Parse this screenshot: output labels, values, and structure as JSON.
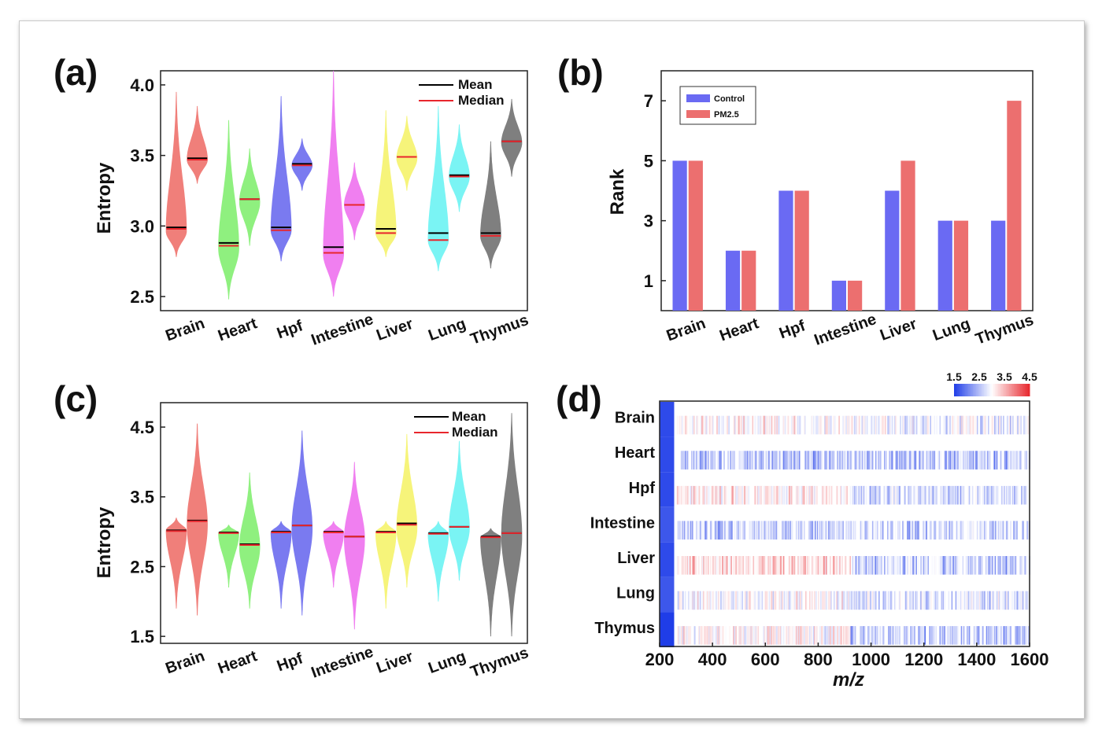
{
  "chart_data": [
    {
      "panel": "(a)",
      "type": "violin",
      "ylabel": "Entropy",
      "ylim": [
        2.4,
        4.1
      ],
      "yticks": [
        "2.5",
        "3.0",
        "3.5",
        "4.0"
      ],
      "yticks_values": [
        2.5,
        3.0,
        3.5,
        4.0
      ],
      "categories": [
        "Brain",
        "Heart",
        "Hpf",
        "Intestine",
        "Liver",
        "Lung",
        "Thymus"
      ],
      "legend": {
        "mean_label": "Mean",
        "median_label": "Median",
        "placement": "top-right"
      },
      "colors": {
        "mean": "#000000",
        "median": "#e8262d"
      },
      "groups": [
        {
          "category": "Brain",
          "color": "#f07f7a",
          "min": 2.78,
          "max": 3.95,
          "peak": 2.96,
          "mean": 2.99,
          "median": 2.98
        },
        {
          "category": "Brain",
          "color": "#f07f7a",
          "min": 3.3,
          "max": 3.85,
          "peak": 3.47,
          "mean": 3.48,
          "median": 3.47
        },
        {
          "category": "Heart",
          "color": "#8ff07f",
          "min": 2.48,
          "max": 3.75,
          "peak": 2.84,
          "mean": 2.88,
          "median": 2.86
        },
        {
          "category": "Heart",
          "color": "#8ff07f",
          "min": 2.86,
          "max": 3.55,
          "peak": 3.17,
          "mean": 3.19,
          "median": 3.19
        },
        {
          "category": "Hpf",
          "color": "#7a7af0",
          "min": 2.75,
          "max": 3.92,
          "peak": 2.97,
          "mean": 2.99,
          "median": 2.97
        },
        {
          "category": "Hpf",
          "color": "#7a7af0",
          "min": 3.25,
          "max": 3.62,
          "peak": 3.43,
          "mean": 3.44,
          "median": 3.43
        },
        {
          "category": "Intestine",
          "color": "#f07ff0",
          "min": 2.5,
          "max": 4.1,
          "peak": 2.8,
          "mean": 2.85,
          "median": 2.81
        },
        {
          "category": "Intestine",
          "color": "#f07ff0",
          "min": 2.9,
          "max": 3.45,
          "peak": 3.15,
          "mean": 3.15,
          "median": 3.15
        },
        {
          "category": "Liver",
          "color": "#f6f47a",
          "min": 2.78,
          "max": 3.82,
          "peak": 2.95,
          "mean": 2.98,
          "median": 2.95
        },
        {
          "category": "Liver",
          "color": "#f6f47a",
          "min": 3.25,
          "max": 3.78,
          "peak": 3.48,
          "mean": 3.49,
          "median": 3.49
        },
        {
          "category": "Lung",
          "color": "#7af4f4",
          "min": 2.68,
          "max": 3.85,
          "peak": 2.9,
          "mean": 2.95,
          "median": 2.9
        },
        {
          "category": "Lung",
          "color": "#7af4f4",
          "min": 3.1,
          "max": 3.72,
          "peak": 3.35,
          "mean": 3.36,
          "median": 3.35
        },
        {
          "category": "Thymus",
          "color": "#7f7f7f",
          "min": 2.7,
          "max": 3.6,
          "peak": 2.93,
          "mean": 2.95,
          "median": 2.93
        },
        {
          "category": "Thymus",
          "color": "#7f7f7f",
          "min": 3.35,
          "max": 3.9,
          "peak": 3.59,
          "mean": 3.6,
          "median": 3.6
        }
      ]
    },
    {
      "panel": "(b)",
      "type": "bar",
      "ylabel": "Rank",
      "ylim": [
        0,
        8
      ],
      "yticks": [
        "1",
        "3",
        "5",
        "7"
      ],
      "yticks_values": [
        1,
        3,
        5,
        7
      ],
      "categories": [
        "Brain",
        "Heart",
        "Hpf",
        "Intestine",
        "Liver",
        "Lung",
        "Thymus"
      ],
      "legend_placement": "top-left",
      "series": [
        {
          "name": "Control",
          "color": "#6a6af3",
          "values": [
            5,
            2,
            4,
            1,
            4,
            3,
            3
          ]
        },
        {
          "name": "PM2.5",
          "color": "#ec6f6f",
          "values": [
            5,
            2,
            4,
            1,
            5,
            3,
            7
          ]
        }
      ]
    },
    {
      "panel": "(c)",
      "type": "violin",
      "ylabel": "Entropy",
      "ylim": [
        1.4,
        4.85
      ],
      "yticks": [
        "1.5",
        "2.5",
        "3.5",
        "4.5"
      ],
      "yticks_values": [
        1.5,
        2.5,
        3.5,
        4.5
      ],
      "categories": [
        "Brain",
        "Heart",
        "Hpf",
        "Intestine",
        "Liver",
        "Lung",
        "Thymus"
      ],
      "legend": {
        "mean_label": "Mean",
        "median_label": "Median",
        "placement": "top-right"
      },
      "colors": {
        "mean": "#000000",
        "median": "#e8262d"
      },
      "groups": [
        {
          "category": "Brain",
          "color": "#f07f7a",
          "min": 1.9,
          "max": 3.2,
          "peak": 3.02,
          "mean": 3.02,
          "median": 3.01
        },
        {
          "category": "Brain",
          "color": "#f07f7a",
          "min": 1.8,
          "max": 4.55,
          "peak": 3.1,
          "mean": 3.16,
          "median": 3.15
        },
        {
          "category": "Heart",
          "color": "#8ff07f",
          "min": 2.2,
          "max": 3.1,
          "peak": 2.98,
          "mean": 2.99,
          "median": 2.98
        },
        {
          "category": "Heart",
          "color": "#8ff07f",
          "min": 1.9,
          "max": 3.85,
          "peak": 2.78,
          "mean": 2.82,
          "median": 2.81
        },
        {
          "category": "Hpf",
          "color": "#7a7af0",
          "min": 1.9,
          "max": 3.15,
          "peak": 2.99,
          "mean": 3.0,
          "median": 2.99
        },
        {
          "category": "Hpf",
          "color": "#7a7af0",
          "min": 1.8,
          "max": 4.45,
          "peak": 3.05,
          "mean": 3.09,
          "median": 3.09
        },
        {
          "category": "Intestine",
          "color": "#f07ff0",
          "min": 2.2,
          "max": 3.15,
          "peak": 2.99,
          "mean": 3.0,
          "median": 2.99
        },
        {
          "category": "Intestine",
          "color": "#f07ff0",
          "min": 1.6,
          "max": 4.0,
          "peak": 2.9,
          "mean": 2.93,
          "median": 2.93
        },
        {
          "category": "Liver",
          "color": "#f6f47a",
          "min": 1.9,
          "max": 3.15,
          "peak": 2.99,
          "mean": 3.0,
          "median": 2.99
        },
        {
          "category": "Liver",
          "color": "#f6f47a",
          "min": 2.2,
          "max": 4.4,
          "peak": 3.05,
          "mean": 3.12,
          "median": 3.1
        },
        {
          "category": "Lung",
          "color": "#7af4f4",
          "min": 2.0,
          "max": 3.15,
          "peak": 2.97,
          "mean": 2.98,
          "median": 2.97
        },
        {
          "category": "Lung",
          "color": "#7af4f4",
          "min": 2.3,
          "max": 4.3,
          "peak": 3.05,
          "mean": 3.07,
          "median": 3.07
        },
        {
          "category": "Thymus",
          "color": "#7f7f7f",
          "min": 1.5,
          "max": 3.05,
          "peak": 2.92,
          "mean": 2.93,
          "median": 2.92
        },
        {
          "category": "Thymus",
          "color": "#7f7f7f",
          "min": 1.5,
          "max": 4.7,
          "peak": 2.95,
          "mean": 2.98,
          "median": 2.98
        }
      ]
    },
    {
      "panel": "(d)",
      "type": "heatmap",
      "xlabel": "m/z",
      "xlim": [
        200,
        1600
      ],
      "xticks": [
        "200",
        "400",
        "600",
        "800",
        "1000",
        "1200",
        "1400",
        "1600"
      ],
      "xticks_values": [
        200,
        400,
        600,
        800,
        1000,
        1200,
        1400,
        1600
      ],
      "rows": [
        "Brain",
        "Heart",
        "Hpf",
        "Intestine",
        "Liver",
        "Lung",
        "Thymus"
      ],
      "colorbar": {
        "ticks": [
          "1.5",
          "2.5",
          "3.5",
          "4.5"
        ],
        "ticks_values": [
          1.5,
          2.5,
          3.5,
          4.5
        ],
        "low_color": "#1f3de8",
        "mid_color": "#ffffff",
        "high_color": "#e8262d"
      },
      "row_profiles": [
        {
          "row": "Brain",
          "segments": [
            {
              "from": 200,
              "to": 255,
              "value": 1.6
            },
            {
              "from": 265,
              "to": 920,
              "value": 3.1
            },
            {
              "from": 920,
              "to": 1600,
              "value": 2.8
            }
          ]
        },
        {
          "row": "Heart",
          "segments": [
            {
              "from": 200,
              "to": 255,
              "value": 1.6
            },
            {
              "from": 265,
              "to": 920,
              "value": 2.3
            },
            {
              "from": 920,
              "to": 1600,
              "value": 2.4
            }
          ]
        },
        {
          "row": "Hpf",
          "segments": [
            {
              "from": 200,
              "to": 255,
              "value": 1.6
            },
            {
              "from": 265,
              "to": 920,
              "value": 3.2
            },
            {
              "from": 920,
              "to": 1600,
              "value": 2.6
            }
          ]
        },
        {
          "row": "Intestine",
          "segments": [
            {
              "from": 200,
              "to": 255,
              "value": 1.7
            },
            {
              "from": 265,
              "to": 920,
              "value": 2.45
            },
            {
              "from": 920,
              "to": 1600,
              "value": 2.5
            }
          ]
        },
        {
          "row": "Liver",
          "segments": [
            {
              "from": 200,
              "to": 255,
              "value": 1.6
            },
            {
              "from": 265,
              "to": 920,
              "value": 3.4
            },
            {
              "from": 920,
              "to": 1600,
              "value": 2.5
            }
          ]
        },
        {
          "row": "Lung",
          "segments": [
            {
              "from": 200,
              "to": 255,
              "value": 1.7
            },
            {
              "from": 265,
              "to": 920,
              "value": 2.95
            },
            {
              "from": 920,
              "to": 1600,
              "value": 2.7
            }
          ]
        },
        {
          "row": "Thymus",
          "segments": [
            {
              "from": 200,
              "to": 255,
              "value": 1.5
            },
            {
              "from": 265,
              "to": 920,
              "value": 3.1
            },
            {
              "from": 920,
              "to": 1600,
              "value": 2.4
            }
          ]
        }
      ]
    }
  ]
}
